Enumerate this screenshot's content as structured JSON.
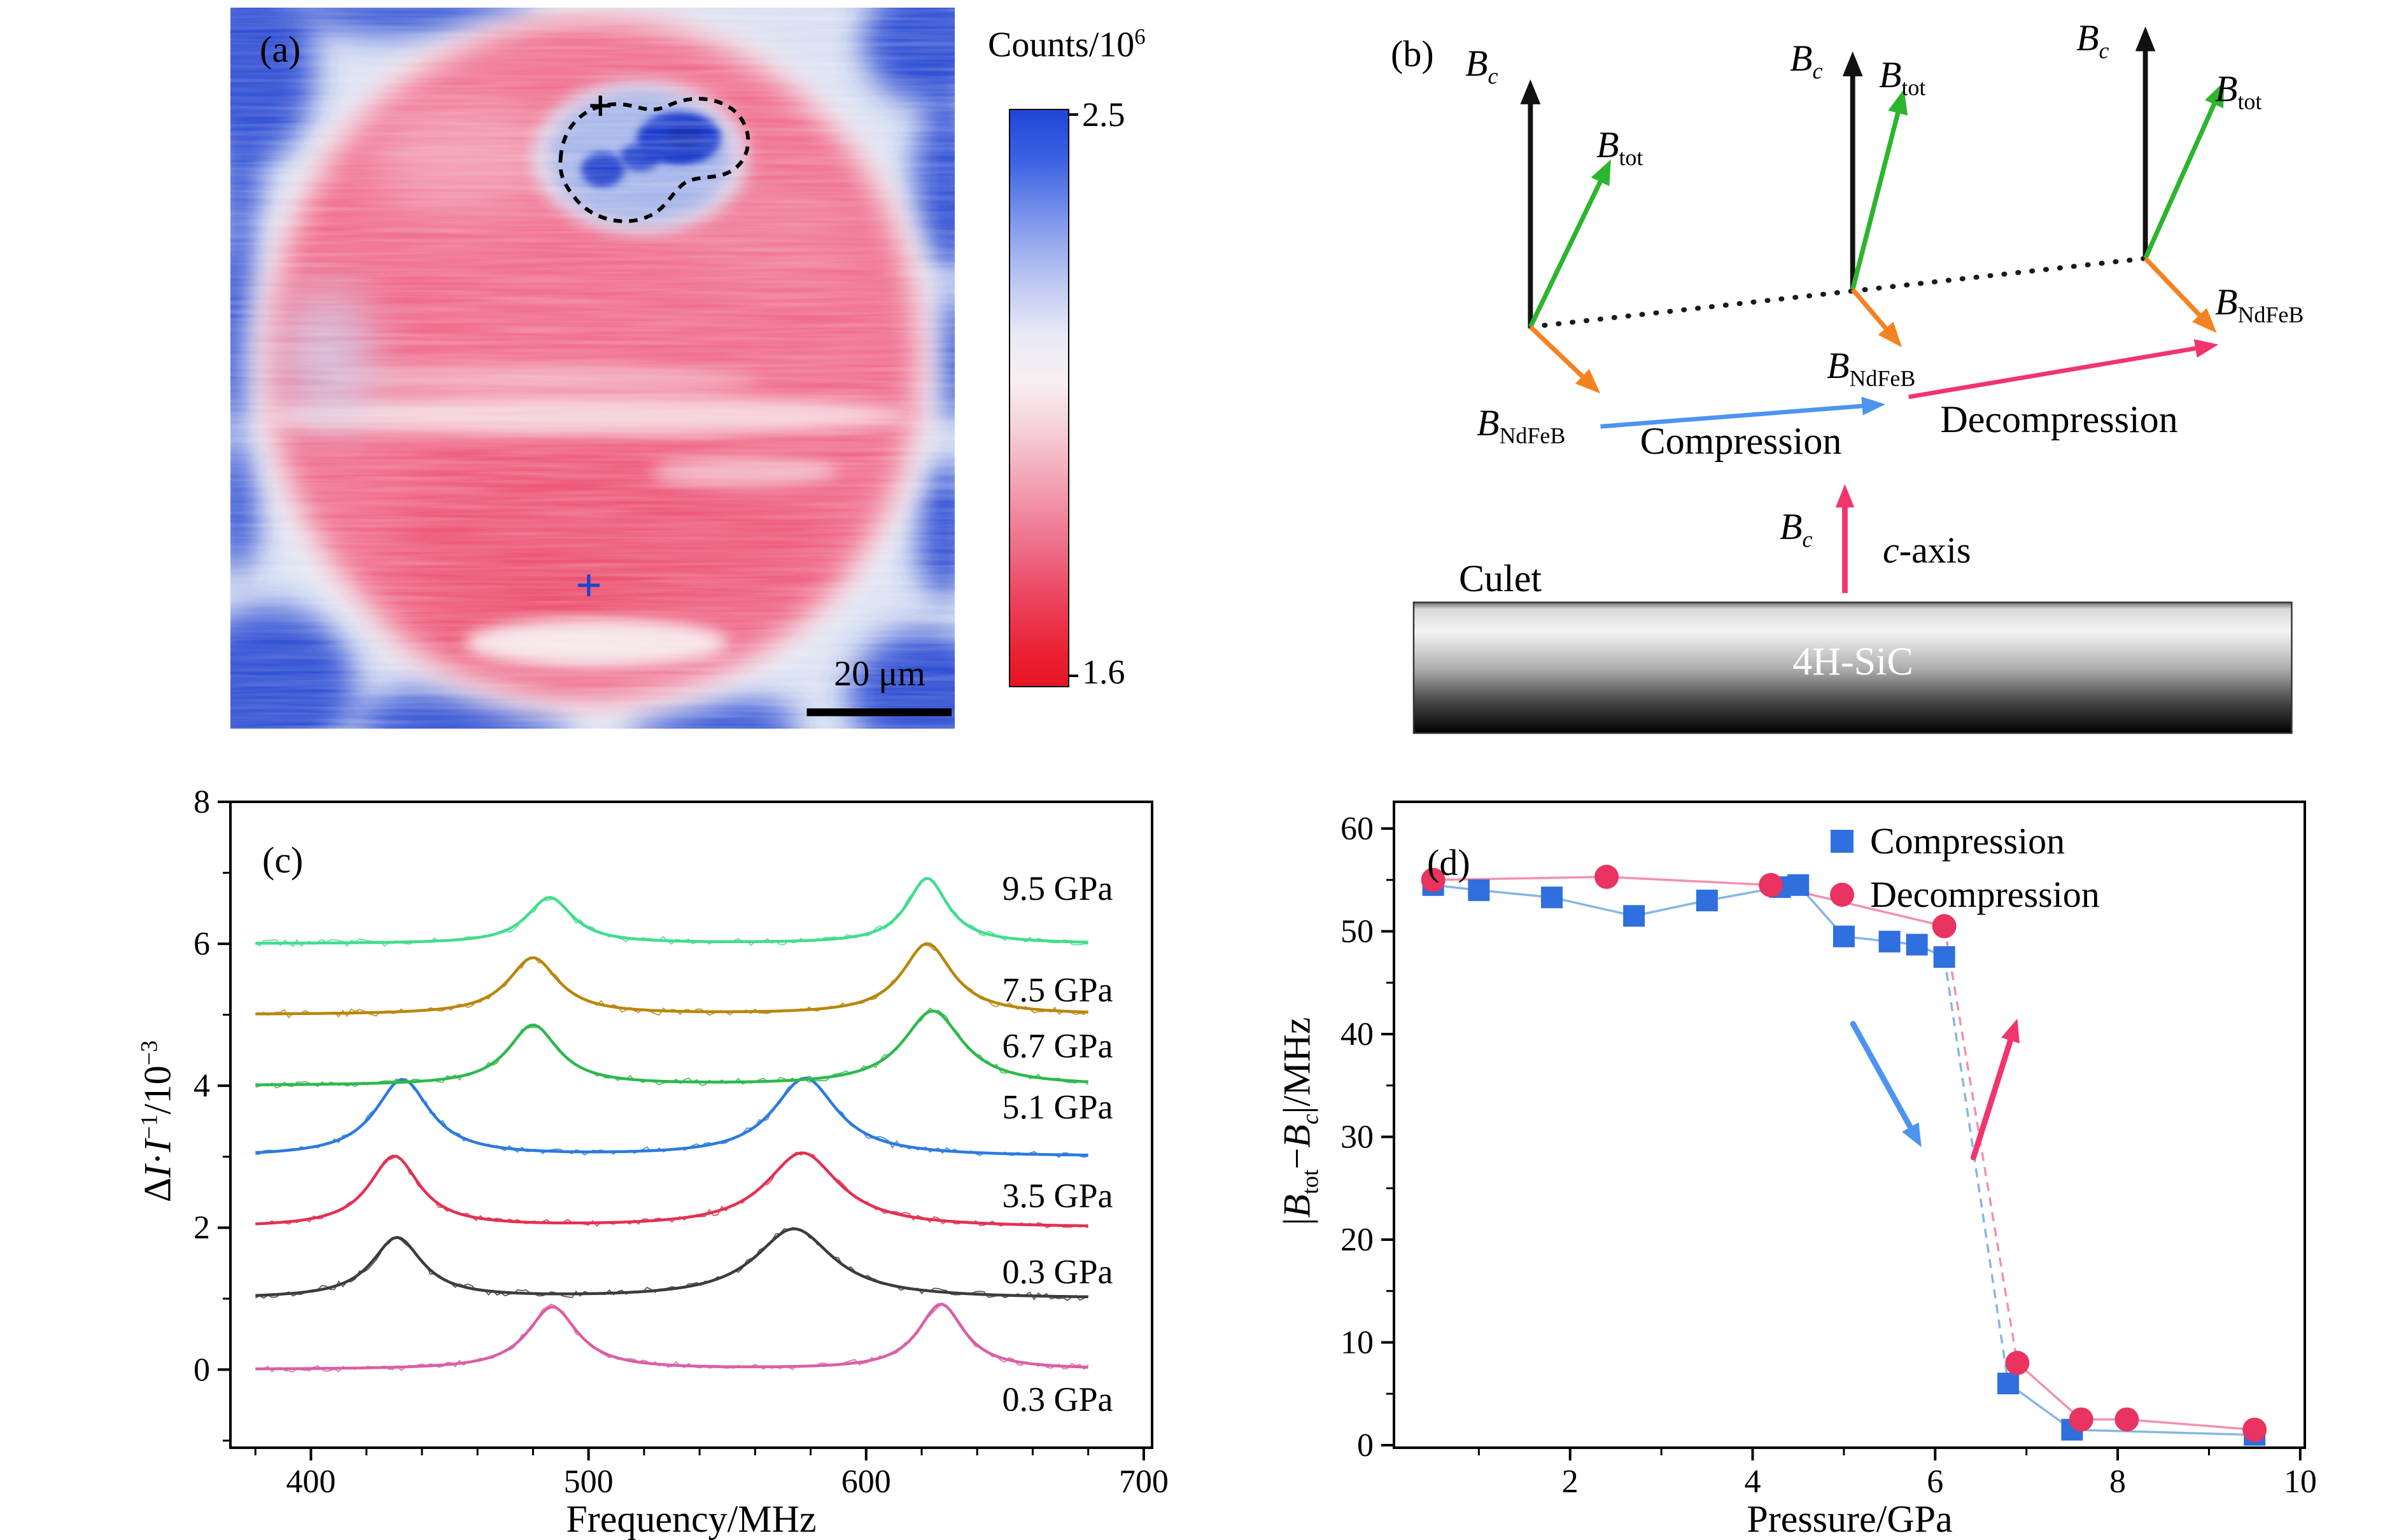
{
  "panel_a": {
    "label": "(a)",
    "colorbar": {
      "title_base": "Counts/10",
      "title_exp": "6",
      "max": "2.5",
      "min": "1.6"
    },
    "scalebar": "20 μm"
  },
  "panel_b": {
    "label": "(b)",
    "sym_B": "B",
    "sub_c": "c",
    "sub_tot": "tot",
    "sub_ndfeb": "NdFeB",
    "compression": "Compression",
    "decompression": "Decompression",
    "culet": "Culet",
    "c_axis_c": "c",
    "c_axis_rest": "-axis",
    "substrate": "4H-SiC"
  },
  "panel_c": {
    "label": "(c)",
    "xlabel": "Frequency/MHz",
    "ylabel": {
      "p1": "Δ",
      "p2": "I",
      "p3": "·",
      "p4": "I",
      "sup1": "−1",
      "p5": "/10",
      "sup2": "−3"
    }
  },
  "panel_d": {
    "label": "(d)",
    "xlabel": "Pressure/GPa",
    "ylabel": {
      "p1": "|",
      "b1": "B",
      "s1": "tot",
      "minus": "−",
      "b2": "B",
      "s2": "c",
      "p2": "|/MHz"
    }
  },
  "colors": {
    "vec_green": "#2db52d",
    "vec_orange": "#f58220",
    "comp_blue": "#4d94f0",
    "decomp_pink": "#f2346e",
    "heat_blue": "#2746d2",
    "heat_pink": "#f06d8c",
    "compression_marker": "#2f6fde",
    "decompression_marker": "#e93360"
  },
  "chart_data": [
    {
      "panel": "c",
      "type": "line",
      "title": "",
      "xlabel": "Frequency/MHz",
      "ylabel": "ΔI·I−1/10−3",
      "xlim": [
        371,
        703
      ],
      "ylim": [
        -1.1,
        8.0
      ],
      "xticks": [
        400,
        500,
        600,
        700
      ],
      "yticks": [
        0,
        2,
        4,
        6,
        8
      ],
      "grid": false,
      "curve_x_range": [
        380,
        680
      ],
      "label_x": 649,
      "series": [
        {
          "label": "0.3 GPa",
          "color": "#da5fa4",
          "baseline": 0,
          "label_y": -0.42,
          "peaks": [
            {
              "center": 487,
              "amp": 0.88,
              "width": 11
            },
            {
              "center": 627,
              "amp": 0.92,
              "width": 10
            }
          ]
        },
        {
          "label": "0.3 GPa",
          "color": "#3c3c3c",
          "baseline": 1,
          "label_y": 1.38,
          "peaks": [
            {
              "center": 431,
              "amp": 0.85,
              "width": 11
            },
            {
              "center": 574,
              "amp": 0.98,
              "width": 17
            }
          ]
        },
        {
          "label": "3.5 GPa",
          "color": "#e23152",
          "baseline": 2,
          "label_y": 2.45,
          "peaks": [
            {
              "center": 430,
              "amp": 1.0,
              "width": 11
            },
            {
              "center": 577,
              "amp": 1.05,
              "width": 16
            }
          ]
        },
        {
          "label": "5.1 GPa",
          "color": "#2b7bdc",
          "baseline": 3,
          "label_y": 3.7,
          "peaks": [
            {
              "center": 433,
              "amp": 1.08,
              "width": 12
            },
            {
              "center": 578,
              "amp": 1.1,
              "width": 14
            }
          ]
        },
        {
          "label": "6.7 GPa",
          "color": "#2eb84d",
          "baseline": 4,
          "label_y": 4.56,
          "peaks": [
            {
              "center": 480,
              "amp": 0.85,
              "width": 11
            },
            {
              "center": 624,
              "amp": 1.05,
              "width": 13
            }
          ]
        },
        {
          "label": "7.5 GPa",
          "color": "#b8860b",
          "baseline": 5,
          "label_y": 5.35,
          "peaks": [
            {
              "center": 480,
              "amp": 0.8,
              "width": 11
            },
            {
              "center": 622,
              "amp": 1.0,
              "width": 11
            }
          ]
        },
        {
          "label": "9.5 GPa",
          "color": "#41dd8d",
          "baseline": 6,
          "label_y": 6.78,
          "peaks": [
            {
              "center": 486,
              "amp": 0.65,
              "width": 10
            },
            {
              "center": 622,
              "amp": 0.92,
              "width": 9
            }
          ]
        }
      ]
    },
    {
      "panel": "d",
      "type": "scatter-line",
      "title": "",
      "xlabel": "Pressure/GPa",
      "ylabel": "|Btot−Bc|/MHz",
      "xlim": [
        0.07,
        10.05
      ],
      "ylim": [
        -0.25,
        62.6
      ],
      "xticks": [
        2,
        4,
        6,
        8,
        10
      ],
      "yticks": [
        0,
        10,
        20,
        30,
        40,
        50,
        60
      ],
      "grid": false,
      "legend": [
        "Compression",
        "Decompression"
      ],
      "series": [
        {
          "name": "Compression",
          "marker": "square",
          "color": "#2f6fde",
          "line_color": "#85b6e6",
          "points": [
            [
              0.5,
              54.5
            ],
            [
              1.0,
              54.0
            ],
            [
              1.8,
              53.3
            ],
            [
              2.7,
              51.5
            ],
            [
              3.5,
              53.0
            ],
            [
              4.3,
              54.3
            ],
            [
              4.5,
              54.5
            ],
            [
              5.0,
              49.5
            ],
            [
              5.5,
              49.0
            ],
            [
              5.8,
              48.7
            ],
            [
              6.1,
              47.5
            ],
            [
              6.8,
              6.0
            ],
            [
              7.5,
              1.5
            ],
            [
              9.5,
              1.0
            ]
          ]
        },
        {
          "name": "Decompression",
          "marker": "circle",
          "color": "#e93360",
          "line_color": "#f490ae",
          "points": [
            [
              0.5,
              55.0
            ],
            [
              2.4,
              55.3
            ],
            [
              4.2,
              54.5
            ],
            [
              6.1,
              50.5
            ],
            [
              6.9,
              8.0
            ],
            [
              7.6,
              2.5
            ],
            [
              8.1,
              2.5
            ],
            [
              9.5,
              1.5
            ]
          ]
        }
      ],
      "annotations": [
        {
          "type": "arrow",
          "color": "#4d94f0",
          "from": [
            5.1,
            41
          ],
          "to": [
            5.85,
            29
          ]
        },
        {
          "type": "arrow",
          "color": "#f2346e",
          "from": [
            6.42,
            28
          ],
          "to": [
            6.9,
            41.5
          ]
        }
      ]
    }
  ]
}
